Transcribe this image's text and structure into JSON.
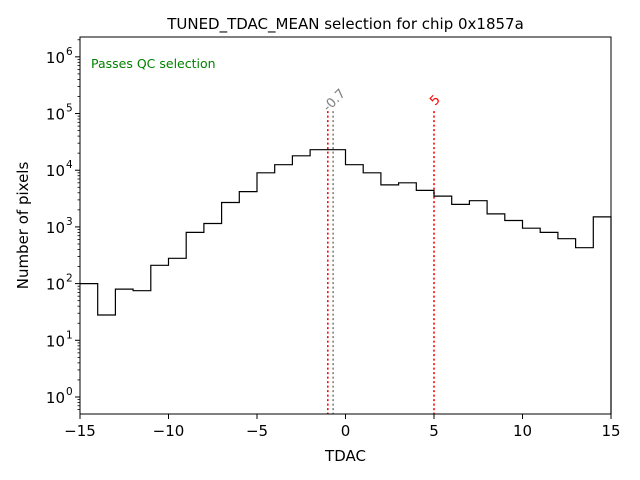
{
  "chart_data": {
    "type": "histogram",
    "title": "TUNED_TDAC_MEAN selection for chip 0x1857a",
    "xlabel": "TDAC",
    "ylabel": "Number of pixels",
    "xlim": [
      -15,
      15
    ],
    "ylim_log10": [
      -0.3,
      6.35
    ],
    "yscale": "log",
    "x_ticks": [
      -15,
      -10,
      -5,
      0,
      5,
      10,
      15
    ],
    "x_tick_labels": [
      "−15",
      "−10",
      "−5",
      "0",
      "5",
      "10",
      "15"
    ],
    "y_tick_exponents": [
      0,
      1,
      2,
      3,
      4,
      5,
      6
    ],
    "y_tick_base": "10",
    "bin_edges": [
      -15,
      -14,
      -13,
      -12,
      -11,
      -10,
      -9,
      -8,
      -7,
      -6,
      -5,
      -4,
      -3,
      -2,
      -1,
      0,
      1,
      2,
      3,
      4,
      5,
      6,
      7,
      8,
      9,
      10,
      11,
      12,
      13,
      14,
      15
    ],
    "counts": [
      100,
      28,
      80,
      75,
      210,
      280,
      800,
      1150,
      2700,
      4200,
      9000,
      12500,
      18000,
      23000,
      23000,
      12500,
      9000,
      5500,
      6000,
      4400,
      3500,
      2500,
      2900,
      1700,
      1300,
      950,
      800,
      620,
      430,
      1500
    ],
    "color": "#000000",
    "vlines": [
      {
        "x": -1.0,
        "label": "",
        "color": "#ff0000"
      },
      {
        "x": -0.7,
        "label": "-0.7",
        "color": "#808080"
      },
      {
        "x": 5,
        "label": "5",
        "color": "#ff0000"
      }
    ],
    "annotation": {
      "text": "Passes QC selection",
      "color": "#008000"
    }
  }
}
